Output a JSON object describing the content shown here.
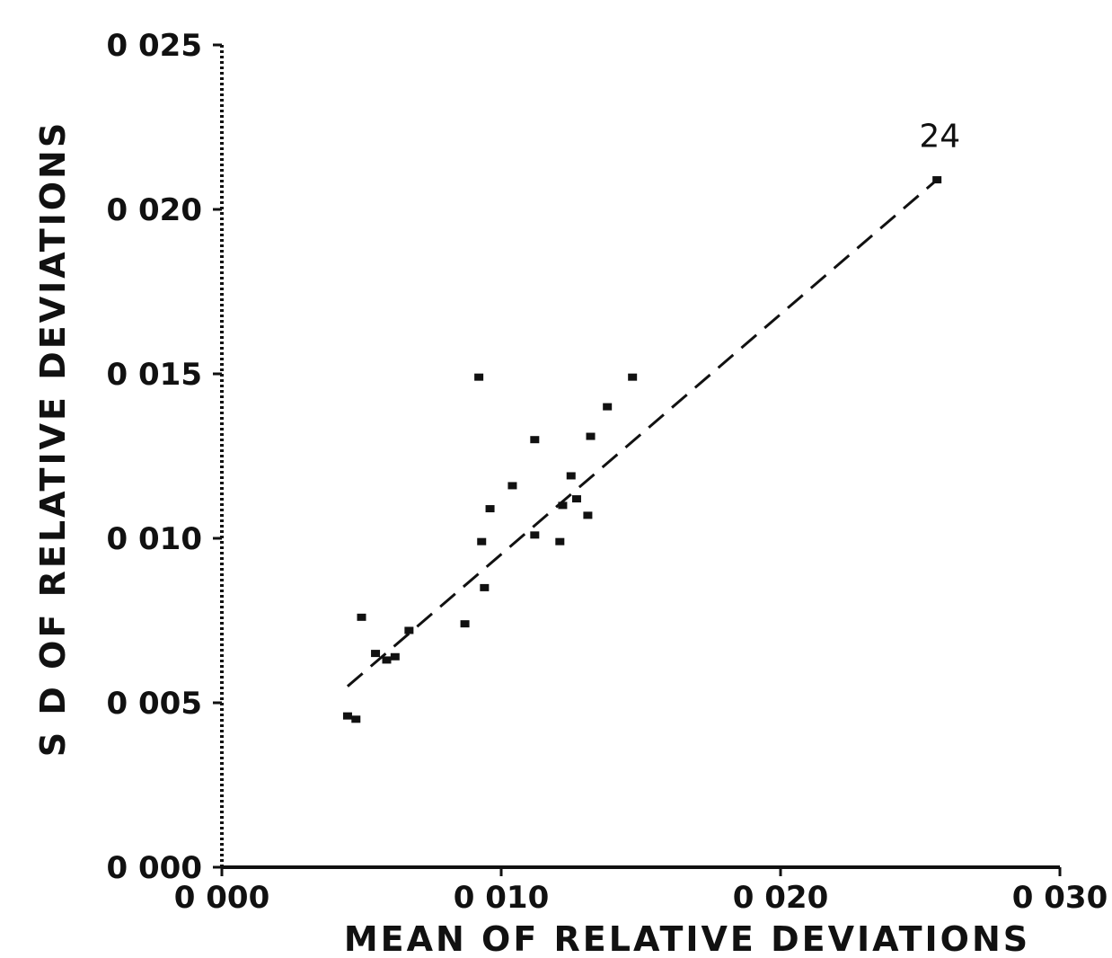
{
  "chart_data": {
    "type": "scatter",
    "xlabel": "MEAN OF RELATIVE DEVIATIONS",
    "ylabel": "S D OF RELATIVE DEVIATIONS",
    "xlim": [
      0.0,
      0.03
    ],
    "ylim": [
      0.0,
      0.025
    ],
    "x_ticks": [
      "0 000",
      "0 010",
      "0 020",
      "0 030"
    ],
    "y_ticks": [
      "0 000",
      "0 005",
      "0 010",
      "0 015",
      "0 020",
      "0 025"
    ],
    "grid": false,
    "points": [
      {
        "x": 0.0045,
        "y": 0.0046
      },
      {
        "x": 0.0048,
        "y": 0.0045
      },
      {
        "x": 0.005,
        "y": 0.0076
      },
      {
        "x": 0.0055,
        "y": 0.0065
      },
      {
        "x": 0.0059,
        "y": 0.0063
      },
      {
        "x": 0.0062,
        "y": 0.0064
      },
      {
        "x": 0.0067,
        "y": 0.0072
      },
      {
        "x": 0.0087,
        "y": 0.0074
      },
      {
        "x": 0.0092,
        "y": 0.0149
      },
      {
        "x": 0.0093,
        "y": 0.0099
      },
      {
        "x": 0.0094,
        "y": 0.0085
      },
      {
        "x": 0.0096,
        "y": 0.0109
      },
      {
        "x": 0.0104,
        "y": 0.0116
      },
      {
        "x": 0.0112,
        "y": 0.0101
      },
      {
        "x": 0.0112,
        "y": 0.013
      },
      {
        "x": 0.0121,
        "y": 0.0099
      },
      {
        "x": 0.0122,
        "y": 0.011
      },
      {
        "x": 0.0125,
        "y": 0.0119
      },
      {
        "x": 0.0127,
        "y": 0.0112
      },
      {
        "x": 0.0131,
        "y": 0.0107
      },
      {
        "x": 0.0132,
        "y": 0.0131
      },
      {
        "x": 0.0138,
        "y": 0.014
      },
      {
        "x": 0.0147,
        "y": 0.0149
      },
      {
        "x": 0.0256,
        "y": 0.0209
      }
    ],
    "fit_line": {
      "x": [
        0.0045,
        0.0256
      ],
      "y": [
        0.0055,
        0.0209
      ],
      "style": "dashed"
    },
    "annotations": [
      {
        "text": "24",
        "x": 0.0257,
        "y": 0.0219
      }
    ]
  }
}
